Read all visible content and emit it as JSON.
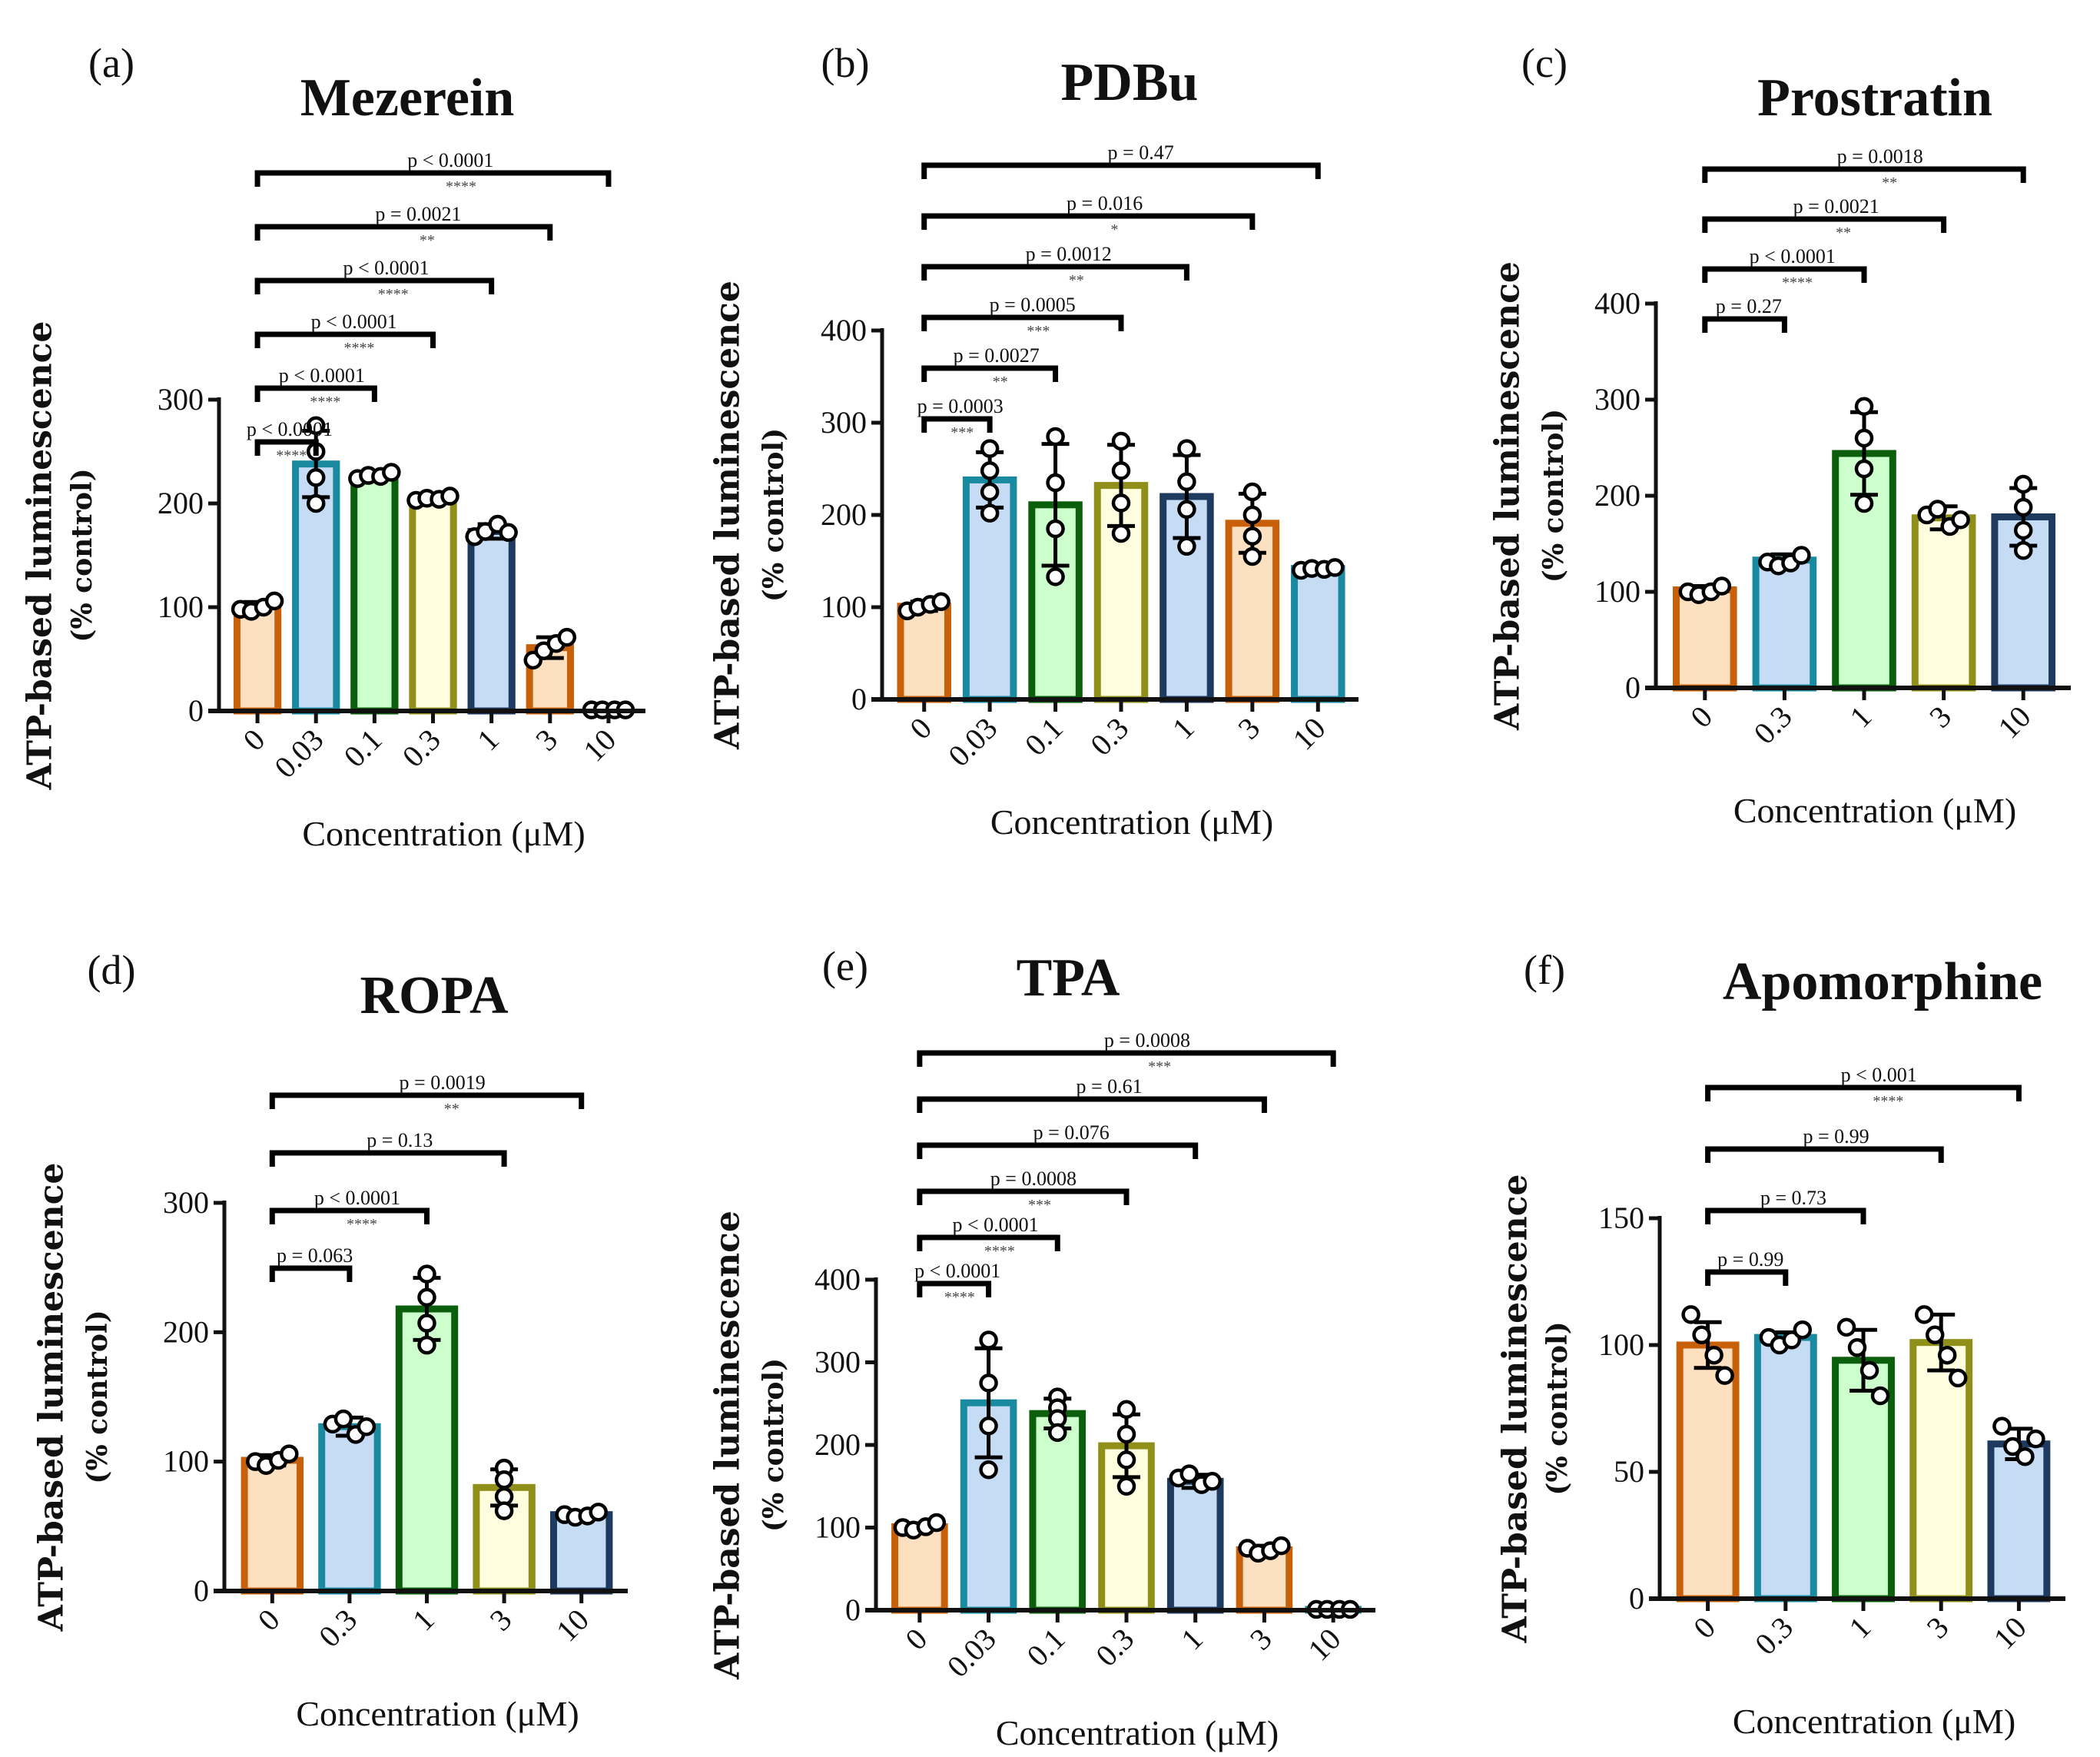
{
  "figure": {
    "y_axis_label": "ATP-based luminescence",
    "y_axis_sublabel": "(% control)",
    "x_axis_label": "Concentration  (μM)",
    "colors": {
      "orange": {
        "stroke": "#c8600a",
        "fill": "#fde0c0"
      },
      "teal": {
        "stroke": "#1a8aa0",
        "fill": "#c6dcf5"
      },
      "green": {
        "stroke": "#0b5e0b",
        "fill": "#ccffcc"
      },
      "olive": {
        "stroke": "#8f8f1a",
        "fill": "#ffffe0"
      },
      "navy": {
        "stroke": "#1f3a5f",
        "fill": "#c6dcf5"
      },
      "point": "#000000"
    }
  },
  "chart_data": [
    {
      "type": "bar",
      "panel": "(a)",
      "title": "Mezerein",
      "xlabel": "Concentration  (μM)",
      "ylabel": "ATP-based luminescence (% control)",
      "ylim": [
        0,
        300
      ],
      "yticks": [
        0,
        100,
        200,
        300
      ],
      "categories": [
        "0",
        "0.03",
        "0.1",
        "0.3",
        "1",
        "3",
        "10"
      ],
      "values": [
        101,
        238,
        227,
        205,
        173,
        61,
        1
      ],
      "error": [
        4,
        32,
        3,
        2,
        7,
        10,
        1
      ],
      "points": [
        [
          98,
          96,
          100,
          106
        ],
        [
          275,
          250,
          225,
          200
        ],
        [
          224,
          227,
          226,
          230
        ],
        [
          203,
          205,
          204,
          207
        ],
        [
          168,
          173,
          180,
          172
        ],
        [
          49,
          58,
          65,
          71
        ],
        [
          1,
          1,
          1,
          1
        ]
      ],
      "bar_colors": [
        "orange",
        "teal",
        "green",
        "olive",
        "navy",
        "orange",
        "teal"
      ],
      "comparisons": [
        {
          "from": "0",
          "to": "0.03",
          "p": "p < 0.0001",
          "stars": "****"
        },
        {
          "from": "0",
          "to": "0.1",
          "p": "p < 0.0001",
          "stars": "****"
        },
        {
          "from": "0",
          "to": "0.3",
          "p": "p < 0.0001",
          "stars": "****"
        },
        {
          "from": "0",
          "to": "1",
          "p": "p < 0.0001",
          "stars": "****"
        },
        {
          "from": "0",
          "to": "3",
          "p": "p = 0.0021",
          "stars": "**"
        },
        {
          "from": "0",
          "to": "10",
          "p": "p < 0.0001",
          "stars": "****"
        }
      ]
    },
    {
      "type": "bar",
      "panel": "(b)",
      "title": "PDBu",
      "xlabel": "Concentration  (μM)",
      "ylabel": "ATP-based luminescence (% control)",
      "ylim": [
        0,
        400
      ],
      "yticks": [
        0,
        100,
        200,
        300,
        400
      ],
      "categories": [
        "0",
        "0.03",
        "0.1",
        "0.3",
        "1",
        "3",
        "10"
      ],
      "values": [
        101,
        238,
        211,
        232,
        220,
        191,
        142
      ],
      "error": [
        5,
        30,
        66,
        44,
        45,
        32,
        2
      ],
      "points": [
        [
          96,
          100,
          103,
          106
        ],
        [
          272,
          248,
          225,
          202
        ],
        [
          285,
          235,
          185,
          133
        ],
        [
          280,
          248,
          213,
          180
        ],
        [
          272,
          236,
          206,
          166
        ],
        [
          225,
          200,
          177,
          155
        ],
        [
          140,
          142,
          141,
          143
        ]
      ],
      "bar_colors": [
        "orange",
        "teal",
        "green",
        "olive",
        "navy",
        "orange",
        "teal"
      ],
      "comparisons": [
        {
          "from": "0",
          "to": "0.03",
          "p": "p = 0.0003",
          "stars": "***"
        },
        {
          "from": "0",
          "to": "0.1",
          "p": "p = 0.0027",
          "stars": "**"
        },
        {
          "from": "0",
          "to": "0.3",
          "p": "p = 0.0005",
          "stars": "***"
        },
        {
          "from": "0",
          "to": "1",
          "p": "p = 0.0012",
          "stars": "**"
        },
        {
          "from": "0",
          "to": "3",
          "p": "p = 0.016",
          "stars": "*"
        },
        {
          "from": "0",
          "to": "10",
          "p": "p = 0.47",
          "stars": ""
        }
      ]
    },
    {
      "type": "bar",
      "panel": "(c)",
      "title": "Prostratin",
      "xlabel": "Concentration  (μM)",
      "ylabel": "ATP-based luminescence (% control)",
      "ylim": [
        0,
        400
      ],
      "yticks": [
        0,
        100,
        200,
        300,
        400
      ],
      "categories": [
        "0",
        "0.3",
        "1",
        "3",
        "10"
      ],
      "values": [
        102,
        133,
        244,
        177,
        178
      ],
      "error": [
        4,
        6,
        43,
        12,
        30
      ],
      "points": [
        [
          100,
          97,
          100,
          106
        ],
        [
          131,
          127,
          130,
          138
        ],
        [
          293,
          260,
          228,
          192
        ],
        [
          180,
          186,
          168,
          175
        ],
        [
          212,
          188,
          164,
          143
        ]
      ],
      "bar_colors": [
        "orange",
        "teal",
        "green",
        "olive",
        "navy"
      ],
      "comparisons": [
        {
          "from": "0",
          "to": "0.3",
          "p": "p = 0.27",
          "stars": ""
        },
        {
          "from": "0",
          "to": "1",
          "p": "p < 0.0001",
          "stars": "****"
        },
        {
          "from": "0",
          "to": "3",
          "p": "p = 0.0021",
          "stars": "**"
        },
        {
          "from": "0",
          "to": "10",
          "p": "p = 0.0018",
          "stars": "**"
        }
      ]
    },
    {
      "type": "bar",
      "panel": "(d)",
      "title": "ROPA",
      "xlabel": "Concentration  (μM)",
      "ylabel": "ATP-based luminescence (% control)",
      "ylim": [
        0,
        300
      ],
      "yticks": [
        0,
        100,
        200,
        300
      ],
      "categories": [
        "0",
        "0.3",
        "1",
        "3",
        "10"
      ],
      "values": [
        101,
        127,
        218,
        80,
        59
      ],
      "error": [
        4,
        7,
        24,
        14,
        2
      ],
      "points": [
        [
          100,
          97,
          101,
          106
        ],
        [
          129,
          133,
          121,
          127
        ],
        [
          245,
          227,
          207,
          190
        ],
        [
          95,
          86,
          73,
          62
        ],
        [
          59,
          57,
          58,
          61
        ]
      ],
      "bar_colors": [
        "orange",
        "teal",
        "green",
        "olive",
        "navy"
      ],
      "comparisons": [
        {
          "from": "0",
          "to": "0.3",
          "p": "p = 0.063",
          "stars": ""
        },
        {
          "from": "0",
          "to": "1",
          "p": "p < 0.0001",
          "stars": "****"
        },
        {
          "from": "0",
          "to": "3",
          "p": "p = 0.13",
          "stars": ""
        },
        {
          "from": "0",
          "to": "10",
          "p": "p = 0.0019",
          "stars": "**"
        }
      ]
    },
    {
      "type": "bar",
      "panel": "(e)",
      "title": "TPA",
      "xlabel": "Concentration  (μM)",
      "ylabel": "ATP-based luminescence (% control)",
      "ylim": [
        0,
        400
      ],
      "yticks": [
        0,
        100,
        200,
        300,
        400
      ],
      "categories": [
        "0",
        "0.03",
        "0.1",
        "0.3",
        "1",
        "3",
        "10"
      ],
      "values": [
        101,
        251,
        238,
        199,
        156,
        73,
        1
      ],
      "error": [
        4,
        66,
        18,
        38,
        8,
        5,
        1
      ],
      "points": [
        [
          100,
          97,
          101,
          106
        ],
        [
          327,
          275,
          223,
          170
        ],
        [
          258,
          245,
          232,
          215
        ],
        [
          243,
          213,
          182,
          150
        ],
        [
          160,
          165,
          152,
          156
        ],
        [
          75,
          69,
          72,
          78
        ],
        [
          1,
          1,
          1,
          1
        ]
      ],
      "bar_colors": [
        "orange",
        "teal",
        "green",
        "olive",
        "navy",
        "orange",
        "teal"
      ],
      "comparisons": [
        {
          "from": "0",
          "to": "0.03",
          "p": "p < 0.0001",
          "stars": "****"
        },
        {
          "from": "0",
          "to": "0.1",
          "p": "p < 0.0001",
          "stars": "****"
        },
        {
          "from": "0",
          "to": "0.3",
          "p": "p = 0.0008",
          "stars": "***"
        },
        {
          "from": "0",
          "to": "1",
          "p": "p = 0.076",
          "stars": ""
        },
        {
          "from": "0",
          "to": "3",
          "p": "p =  0.61",
          "stars": ""
        },
        {
          "from": "0",
          "to": "10",
          "p": "p = 0.0008",
          "stars": "***"
        }
      ]
    },
    {
      "type": "bar",
      "panel": "(f)",
      "title": "Apomorphine",
      "xlabel": "Concentration  (μM)",
      "ylabel": "ATP-based luminescence (% control)",
      "ylim": [
        0,
        150
      ],
      "yticks": [
        0,
        50,
        100,
        150
      ],
      "categories": [
        "0",
        "0.3",
        "1",
        "3",
        "10"
      ],
      "values": [
        100,
        103,
        94,
        101,
        61
      ],
      "error": [
        9,
        2,
        12,
        11,
        6
      ],
      "points": [
        [
          112,
          104,
          96,
          88
        ],
        [
          103,
          100,
          102,
          106
        ],
        [
          107,
          99,
          90,
          80
        ],
        [
          112,
          104,
          96,
          87
        ],
        [
          68,
          60,
          56,
          63
        ]
      ],
      "bar_colors": [
        "orange",
        "teal",
        "green",
        "olive",
        "navy"
      ],
      "comparisons": [
        {
          "from": "0",
          "to": "0.3",
          "p": "p = 0.99",
          "stars": ""
        },
        {
          "from": "0",
          "to": "1",
          "p": "p = 0.73",
          "stars": ""
        },
        {
          "from": "0",
          "to": "3",
          "p": "p = 0.99",
          "stars": ""
        },
        {
          "from": "0",
          "to": "10",
          "p": "p < 0.001",
          "stars": "****"
        }
      ]
    }
  ]
}
